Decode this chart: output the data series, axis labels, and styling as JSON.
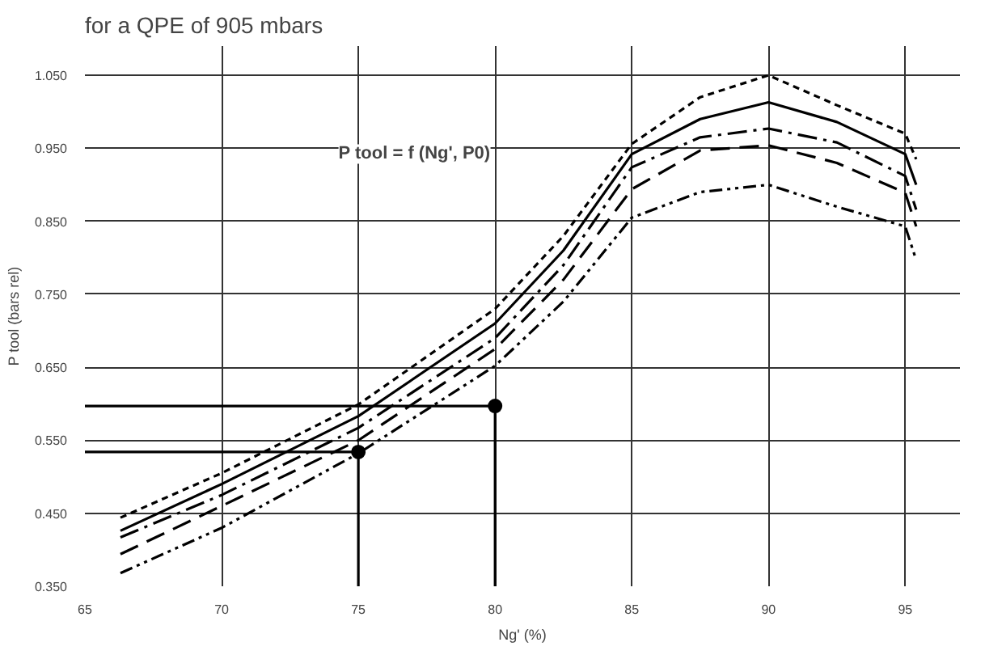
{
  "chart_data": {
    "type": "line",
    "title": "for a QPE of 905 mbars",
    "xlabel": "Ng' (%)",
    "ylabel": "P tool (bars rel)",
    "annotations": [
      "P tool = f (Ng', P0)"
    ],
    "xlim": [
      65,
      97
    ],
    "ylim": [
      0.35,
      1.09
    ],
    "xticks": [
      65,
      70,
      75,
      80,
      85,
      90,
      95
    ],
    "yticks": [
      {
        "value": 0.35,
        "label": "0.350"
      },
      {
        "value": 0.45,
        "label": "0.450"
      },
      {
        "value": 0.55,
        "label": "0.550"
      },
      {
        "value": 0.65,
        "label": "0.650"
      },
      {
        "value": 0.75,
        "label": "0.750"
      },
      {
        "value": 0.85,
        "label": "0.850"
      },
      {
        "value": 0.95,
        "label": "0.950"
      },
      {
        "value": 1.05,
        "label": "1.050"
      }
    ],
    "grid": true,
    "series": [
      {
        "color": "#000000",
        "line_style": "dashed",
        "x": [
          66.3,
          70,
          75,
          80,
          82.5,
          85,
          87.5,
          90,
          92.5,
          95,
          95.4
        ],
        "values": [
          0.444,
          0.505,
          0.599,
          0.73,
          0.83,
          0.956,
          1.02,
          1.05,
          1.009,
          0.97,
          0.935
        ]
      },
      {
        "color": "#000000",
        "line_style": "solid",
        "x": [
          66.3,
          70,
          75,
          80,
          82.5,
          85,
          87.5,
          90,
          92.5,
          95,
          95.4
        ],
        "values": [
          0.426,
          0.49,
          0.583,
          0.71,
          0.81,
          0.942,
          0.99,
          1.013,
          0.986,
          0.942,
          0.9
        ]
      },
      {
        "color": "#000000",
        "line_style": "dashdot",
        "x": [
          66.3,
          70,
          75,
          80,
          82.5,
          85,
          87.5,
          90,
          92.5,
          95,
          95.4
        ],
        "values": [
          0.417,
          0.475,
          0.567,
          0.69,
          0.79,
          0.924,
          0.965,
          0.977,
          0.958,
          0.912,
          0.866
        ]
      },
      {
        "color": "#000000",
        "line_style": "longdash",
        "x": [
          66.3,
          70,
          75,
          80,
          82.5,
          85,
          87.5,
          90,
          92.5,
          95,
          95.4
        ],
        "values": [
          0.394,
          0.46,
          0.55,
          0.675,
          0.77,
          0.894,
          0.947,
          0.954,
          0.93,
          0.889,
          0.843
        ]
      },
      {
        "color": "#000000",
        "line_style": "dashdotdot",
        "x": [
          66.3,
          70,
          75,
          80,
          82.5,
          85,
          87.5,
          90,
          92.5,
          95,
          95.4
        ],
        "values": [
          0.368,
          0.43,
          0.532,
          0.652,
          0.74,
          0.855,
          0.89,
          0.9,
          0.87,
          0.843,
          0.797
        ]
      },
      {
        "color": "#000000",
        "line_style": "solid",
        "x": [
          65,
          80,
          80
        ],
        "values": [
          0.597,
          0.597,
          0.35
        ]
      },
      {
        "color": "#000000",
        "line_style": "solid",
        "x": [
          65,
          75,
          75
        ],
        "values": [
          0.534,
          0.534,
          0.35
        ]
      },
      {
        "type": "scatter",
        "marker": "circle",
        "color": "#000000",
        "x": [
          75,
          80
        ],
        "values": [
          0.534,
          0.597
        ]
      }
    ]
  }
}
